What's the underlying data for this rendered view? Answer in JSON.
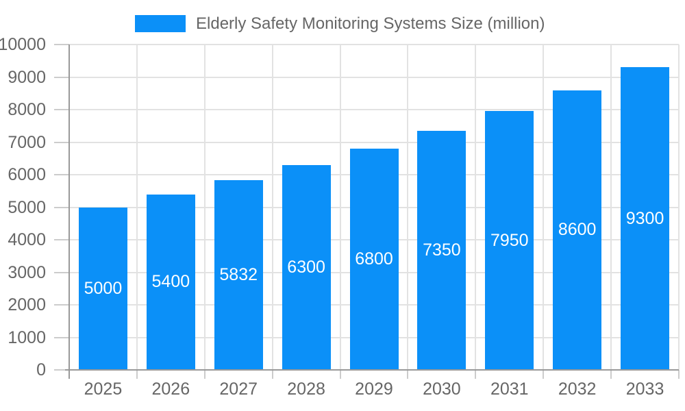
{
  "legend": {
    "label": "Elderly Safety Monitoring Systems Size (million)"
  },
  "chart_data": {
    "type": "bar",
    "title": "Elderly Safety Monitoring Systems Size (million)",
    "categories": [
      "2025",
      "2026",
      "2027",
      "2028",
      "2029",
      "2030",
      "2031",
      "2032",
      "2033"
    ],
    "series": [
      {
        "name": "Elderly Safety Monitoring Systems Size (million)",
        "values": [
          5000,
          5400,
          5832,
          6300,
          6800,
          7350,
          7950,
          8600,
          9300
        ]
      }
    ],
    "xlabel": "",
    "ylabel": "",
    "ylim": [
      0,
      10000
    ],
    "y_tick_interval": 1000,
    "y_ticks": [
      0,
      1000,
      2000,
      3000,
      4000,
      5000,
      6000,
      7000,
      8000,
      9000,
      10000
    ],
    "grid": true,
    "legend_position": "top",
    "value_labels": "inside-center",
    "colors": {
      "bar": "#0b90f8",
      "value_label": "#ffffff",
      "axis_text": "#666666",
      "legend_text": "#666666",
      "gridline": "#e2e2e2",
      "axis_line": "#999999",
      "tick": "#cccccc",
      "background": "#ffffff"
    }
  }
}
